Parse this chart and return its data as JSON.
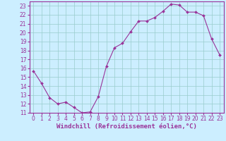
{
  "hours": [
    0,
    1,
    2,
    3,
    4,
    5,
    6,
    7,
    8,
    9,
    10,
    11,
    12,
    13,
    14,
    15,
    16,
    17,
    18,
    19,
    20,
    21,
    22,
    23
  ],
  "values": [
    15.7,
    14.3,
    12.7,
    12.0,
    12.2,
    11.6,
    11.0,
    11.1,
    12.8,
    16.2,
    18.3,
    18.8,
    20.1,
    21.3,
    21.3,
    21.7,
    22.4,
    23.2,
    23.1,
    22.3,
    22.3,
    21.9,
    19.3,
    17.5
  ],
  "line_color": "#993399",
  "marker": "D",
  "marker_size": 2.0,
  "bg_color": "#cceeff",
  "grid_color": "#99cccc",
  "axis_label_color": "#993399",
  "xlabel": "Windchill (Refroidissement éolien,°C)",
  "ylim": [
    11,
    23.5
  ],
  "yticks": [
    11,
    12,
    13,
    14,
    15,
    16,
    17,
    18,
    19,
    20,
    21,
    22,
    23
  ],
  "xticks": [
    0,
    1,
    2,
    3,
    4,
    5,
    6,
    7,
    8,
    9,
    10,
    11,
    12,
    13,
    14,
    15,
    16,
    17,
    18,
    19,
    20,
    21,
    22,
    23
  ],
  "tick_fontsize": 5.5,
  "xlabel_fontsize": 6.5,
  "spine_color": "#993399",
  "linewidth": 0.8
}
